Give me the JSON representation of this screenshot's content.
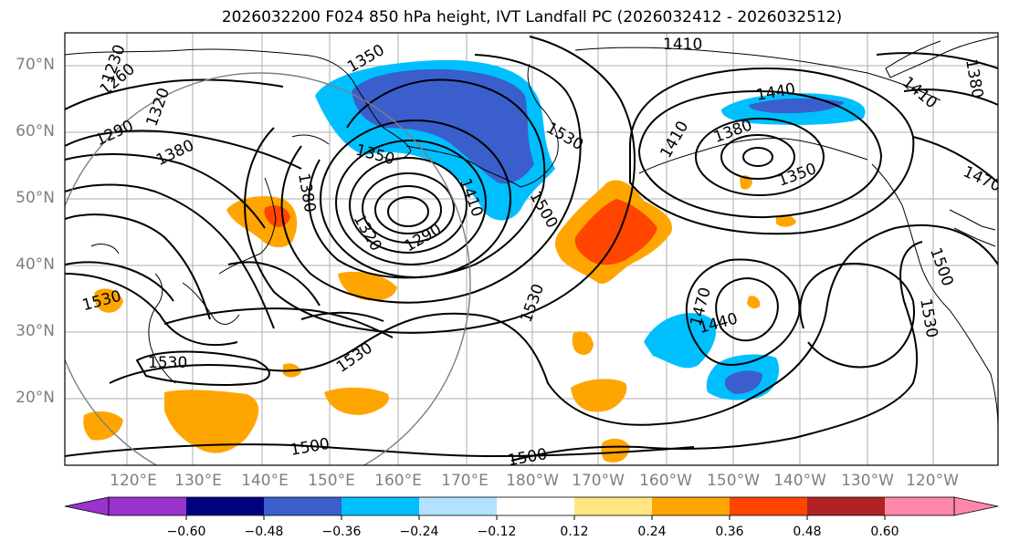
{
  "title": "2026032200 F024 850 hPa height, IVT Landfall PC (2026032412 - 2026032512)",
  "lat_labels": [
    "70°N",
    "60°N",
    "50°N",
    "40°N",
    "30°N",
    "20°N"
  ],
  "lon_labels": [
    "120°E",
    "130°E",
    "140°E",
    "150°E",
    "160°E",
    "170°E",
    "180°W",
    "170°W",
    "160°W",
    "150°W",
    "140°W",
    "130°W",
    "120°W"
  ],
  "contour_labels": [
    "1230",
    "1260",
    "1290",
    "1320",
    "1350",
    "1380",
    "1380",
    "1350",
    "1320",
    "1290",
    "1410",
    "1530",
    "1500",
    "1410",
    "1440",
    "1380",
    "1350",
    "1410",
    "1470",
    "1500",
    "1530",
    "1470",
    "1440",
    "1530",
    "1530",
    "1530",
    "1530",
    "1500",
    "1500",
    "1380",
    "1410"
  ],
  "colorbar": {
    "ticks": [
      "−0.60",
      "−0.48",
      "−0.36",
      "−0.24",
      "−0.12",
      "0.12",
      "0.24",
      "0.36",
      "0.48",
      "0.60"
    ],
    "colors": [
      "#9933cc",
      "#000080",
      "#3a5fcd",
      "#00bfff",
      "#b2e2ff",
      "#ffffff",
      "#ffe680",
      "#ffa500",
      "#ff4500",
      "#b22222",
      "#ff88aa"
    ]
  },
  "colors": {
    "positive_strong": "#ff4500",
    "positive_mid": "#ffa500",
    "positive_weak": "#ffe680",
    "negative_strong": "#3a5fcd",
    "negative_mid": "#00bfff",
    "negative_weak": "#b2e2ff"
  }
}
